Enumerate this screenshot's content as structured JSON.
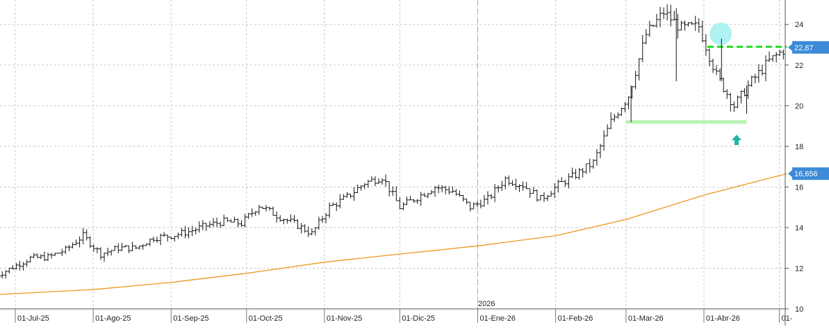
{
  "chart_data": {
    "type": "ohlc",
    "year_marker": "2026",
    "x_ticks": [
      "01-Jul-25",
      "01-Ago-25",
      "01-Sep-25",
      "01-Oct-25",
      "01-Nov-25",
      "01-Dic-25",
      "01-Ene-26",
      "01-Feb-26",
      "01-Mar-26",
      "01-Abr-26",
      "01-"
    ],
    "y_ticks": [
      10,
      12,
      14,
      16,
      18,
      20,
      22,
      24
    ],
    "ylim": [
      10,
      25.3
    ],
    "grid": true,
    "last_price_label": "22,87",
    "ma_label": "16,656",
    "colors": {
      "price": "#111111",
      "ma": "#f0961e",
      "resistance": "#22dd22",
      "support": "#b9f2b3",
      "circle": "#aef2f2",
      "arrow": "#1fb5a8",
      "label_bg": "#3c8ad8"
    },
    "price_series": [
      {
        "date": "2025-06-23",
        "close": 11.6
      },
      {
        "date": "2025-06-30",
        "close": 12.05
      },
      {
        "date": "2025-07-07",
        "close": 12.5
      },
      {
        "date": "2025-07-14",
        "close": 12.55
      },
      {
        "date": "2025-07-21",
        "close": 12.9
      },
      {
        "date": "2025-07-28",
        "close": 13.6
      },
      {
        "date": "2025-08-04",
        "close": 12.7
      },
      {
        "date": "2025-08-11",
        "close": 13.0
      },
      {
        "date": "2025-08-18",
        "close": 13.0
      },
      {
        "date": "2025-08-25",
        "close": 13.5
      },
      {
        "date": "2025-09-01",
        "close": 13.6
      },
      {
        "date": "2025-09-08",
        "close": 13.8
      },
      {
        "date": "2025-09-15",
        "close": 14.1
      },
      {
        "date": "2025-09-22",
        "close": 14.3
      },
      {
        "date": "2025-09-29",
        "close": 14.2
      },
      {
        "date": "2025-10-06",
        "close": 15.1
      },
      {
        "date": "2025-10-13",
        "close": 14.6
      },
      {
        "date": "2025-10-20",
        "close": 14.2
      },
      {
        "date": "2025-10-27",
        "close": 13.7
      },
      {
        "date": "2025-11-03",
        "close": 15.0
      },
      {
        "date": "2025-11-10",
        "close": 15.5
      },
      {
        "date": "2025-11-17",
        "close": 16.2
      },
      {
        "date": "2025-11-24",
        "close": 16.5
      },
      {
        "date": "2025-12-01",
        "close": 15.0
      },
      {
        "date": "2025-12-08",
        "close": 15.5
      },
      {
        "date": "2025-12-15",
        "close": 16.0
      },
      {
        "date": "2025-12-22",
        "close": 15.8
      },
      {
        "date": "2025-12-29",
        "close": 15.0
      },
      {
        "date": "2026-01-05",
        "close": 15.4
      },
      {
        "date": "2026-01-12",
        "close": 16.4
      },
      {
        "date": "2026-01-19",
        "close": 16.1
      },
      {
        "date": "2026-01-26",
        "close": 15.4
      },
      {
        "date": "2026-02-02",
        "close": 16.1
      },
      {
        "date": "2026-02-09",
        "close": 16.6
      },
      {
        "date": "2026-02-16",
        "close": 17.2
      },
      {
        "date": "2026-02-23",
        "close": 19.2
      },
      {
        "date": "2026-03-02",
        "close": 20.5
      },
      {
        "date": "2026-03-09",
        "close": 23.5
      },
      {
        "date": "2026-03-16",
        "close": 24.6
      },
      {
        "date": "2026-03-23",
        "close": 23.8
      },
      {
        "date": "2026-03-30",
        "close": 23.9
      },
      {
        "date": "2026-04-06",
        "close": 21.5
      },
      {
        "date": "2026-04-13",
        "close": 20.0
      },
      {
        "date": "2026-04-20",
        "close": 21.2
      },
      {
        "date": "2026-04-27",
        "close": 22.2
      },
      {
        "date": "2026-05-04",
        "close": 22.87
      }
    ],
    "moving_average": [
      {
        "date": "2025-06-23",
        "value": 10.7
      },
      {
        "date": "2025-08-01",
        "value": 10.95
      },
      {
        "date": "2025-09-01",
        "value": 11.3
      },
      {
        "date": "2025-10-01",
        "value": 11.75
      },
      {
        "date": "2025-11-01",
        "value": 12.3
      },
      {
        "date": "2025-12-01",
        "value": 12.7
      },
      {
        "date": "2026-01-01",
        "value": 13.1
      },
      {
        "date": "2026-02-01",
        "value": 13.6
      },
      {
        "date": "2026-03-01",
        "value": 14.4
      },
      {
        "date": "2026-04-01",
        "value": 15.6
      },
      {
        "date": "2026-05-04",
        "value": 16.656
      }
    ],
    "annotations": {
      "resistance": {
        "value": 22.9,
        "from": "2026-04-01",
        "to": "2026-05-04"
      },
      "support": {
        "value": 19.2,
        "from": "2026-03-01",
        "to": "2026-04-18"
      },
      "circle": {
        "date": "2026-04-06",
        "value": 23.4
      },
      "arrow_up": {
        "date": "2026-04-14",
        "value": 18.3
      }
    }
  }
}
